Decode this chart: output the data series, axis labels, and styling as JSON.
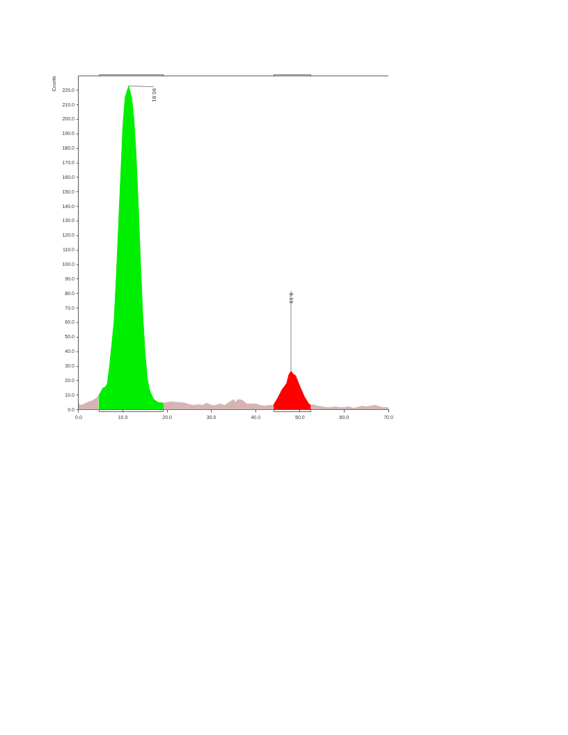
{
  "chart_data": {
    "type": "area",
    "ylabel": "Counts",
    "xlim": [
      0,
      70
    ],
    "ylim": [
      0,
      230
    ],
    "xticks": [
      {
        "value": 0,
        "label": "0.0"
      },
      {
        "value": 10,
        "label": "10.0"
      },
      {
        "value": 20,
        "label": "20.0"
      },
      {
        "value": 30,
        "label": "30.0"
      },
      {
        "value": 40,
        "label": "40.0"
      },
      {
        "value": 50,
        "label": "50.0"
      },
      {
        "value": 60,
        "label": "60.0"
      },
      {
        "value": 70,
        "label": "70.0"
      }
    ],
    "yticks": [
      {
        "value": 0,
        "label": "0.0"
      },
      {
        "value": 10,
        "label": "10.0"
      },
      {
        "value": 20,
        "label": "20.0"
      },
      {
        "value": 30,
        "label": "30.0"
      },
      {
        "value": 40,
        "label": "40.0"
      },
      {
        "value": 50,
        "label": "50.0"
      },
      {
        "value": 60,
        "label": "60.0"
      },
      {
        "value": 70,
        "label": "70.0"
      },
      {
        "value": 80,
        "label": "80.0"
      },
      {
        "value": 90,
        "label": "90.0"
      },
      {
        "value": 100,
        "label": "100.0"
      },
      {
        "value": 110,
        "label": "110.0"
      },
      {
        "value": 120,
        "label": "120.0"
      },
      {
        "value": 130,
        "label": "130.0"
      },
      {
        "value": 140,
        "label": "140.0"
      },
      {
        "value": 150,
        "label": "150.0"
      },
      {
        "value": 160,
        "label": "160.0"
      },
      {
        "value": 170,
        "label": "170.0"
      },
      {
        "value": 180,
        "label": "180.0"
      },
      {
        "value": 190,
        "label": "190.0"
      },
      {
        "value": 200,
        "label": "200.0"
      },
      {
        "value": 210,
        "label": "210.0"
      },
      {
        "value": 220,
        "label": "220.0"
      }
    ],
    "series": [
      {
        "color": "#d6b4b4",
        "x": [
          0,
          0.5,
          1,
          2,
          3,
          4,
          4.5,
          11.3,
          19.2,
          20,
          21,
          22,
          23,
          24,
          25,
          26,
          27,
          28,
          29,
          30,
          31,
          32,
          33,
          34,
          35,
          35.5,
          36,
          37,
          38,
          39,
          40,
          41,
          42,
          43,
          44,
          48,
          52.5,
          53,
          54,
          55,
          56,
          57,
          58,
          59,
          60,
          61,
          62,
          63,
          64,
          65,
          66,
          67,
          68,
          69,
          70
        ],
        "values": [
          4,
          3,
          3.5,
          5,
          6,
          8,
          9.5,
          null,
          4.5,
          5,
          5.5,
          5,
          5,
          4.5,
          3.5,
          3,
          3.5,
          3,
          4.5,
          3,
          3,
          4,
          3,
          5,
          7,
          5,
          7,
          6.5,
          4,
          4,
          4,
          3,
          2.5,
          3,
          3,
          null,
          3,
          3.5,
          2.5,
          2,
          1.5,
          1.5,
          2,
          1.5,
          1.5,
          2,
          1,
          1.5,
          2.5,
          2,
          2.5,
          3,
          2,
          1.5,
          1.5
        ]
      },
      {
        "color": "#00ee00",
        "x": [
          4.5,
          5,
          5.5,
          6,
          6.5,
          7,
          7.5,
          8,
          8.5,
          9,
          9.5,
          10,
          10.5,
          11.3,
          12,
          12.5,
          13,
          13.5,
          14,
          14.5,
          15,
          15.5,
          16,
          16.5,
          17,
          18,
          19.2
        ],
        "values": [
          9.5,
          12,
          15,
          15.5,
          18,
          30,
          45,
          60,
          90,
          125,
          160,
          195,
          215,
          223,
          215,
          200,
          175,
          140,
          100,
          65,
          40,
          22,
          14,
          10,
          7,
          5,
          4.5
        ]
      },
      {
        "color": "#ff0000",
        "x": [
          44,
          45,
          46,
          47,
          47.5,
          48,
          48.5,
          49,
          50,
          51,
          52,
          52.5
        ],
        "values": [
          3,
          8,
          14,
          18,
          24,
          26.5,
          24.5,
          23.5,
          16,
          9,
          4,
          3
        ]
      }
    ],
    "annotations": [
      {
        "text": "90.81",
        "x": 11.3,
        "y": 223
      },
      {
        "text": "9.19",
        "x": 48,
        "y": 26.5
      }
    ],
    "legend": false,
    "grid": false
  }
}
